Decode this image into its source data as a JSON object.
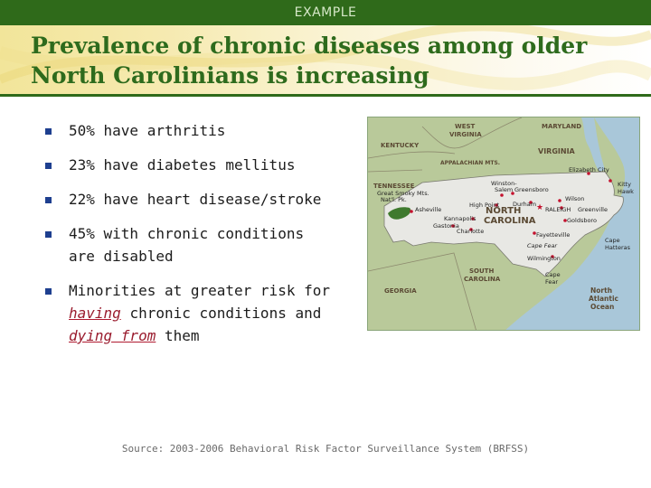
{
  "header": {
    "label": "EXAMPLE"
  },
  "title": {
    "line1": "Prevalence of chronic diseases among older",
    "line2": "North Carolinians is increasing"
  },
  "bullets": [
    {
      "text": "50% have arthritis"
    },
    {
      "text": "23% have diabetes mellitus"
    },
    {
      "text": "22% have heart disease/stroke"
    },
    {
      "line1": "45% with chronic conditions",
      "line2": "are disabled"
    },
    {
      "pre": "Minorities at greater risk for",
      "link1": "having",
      "mid": "chronic conditions and",
      "link2": "dying from",
      "post": "them"
    }
  ],
  "map": {
    "states": {
      "west_virginia_1": "WEST",
      "west_virginia_2": "VIRGINIA",
      "maryland": "MARYLAND",
      "kentucky": "KENTUCKY",
      "virginia": "VIRGINIA",
      "appalachian": "APPALACHIAN MTS.",
      "tennessee": "TENNESSEE",
      "nc_1": "NORTH",
      "nc_2": "CAROLINA",
      "sc_1": "SOUTH",
      "sc_2": "CAROLINA",
      "georgia": "GEORGIA"
    },
    "park": {
      "line1": "Great Smoky Mts.",
      "line2": "Nat'l. Pk."
    },
    "cities": {
      "winston_1": "Winston-",
      "winston_2": "Salem",
      "greensboro": "Greensboro",
      "elizabeth_city": "Elizabeth City",
      "high_point": "High Point",
      "durham": "Durham",
      "wilson": "Wilson",
      "raleigh": "RALEIGH",
      "greenville": "Greenville",
      "asheville": "Asheville",
      "kannapolis": "Kannapolis",
      "goldsboro": "Goldsboro",
      "gastonia": "Gastonia",
      "charlotte": "Charlotte",
      "fayetteville": "Fayetteville",
      "wilmington": "Wilmington",
      "kitty_1": "Kitty",
      "kitty_2": "Hawk"
    },
    "features": {
      "cape_fear_river": "Cape Fear",
      "cape_hatteras_1": "Cape",
      "cape_hatteras_2": "Hatteras",
      "cape_fear_1": "Cape",
      "cape_fear_2": "Fear",
      "ocean_1": "North",
      "ocean_2": "Atlantic",
      "ocean_3": "Ocean"
    },
    "colors": {
      "land": "#b9c99a",
      "nc": "#e8e8e4",
      "ocean": "#a9c7d9",
      "city": "#c4122e"
    }
  },
  "source": "Source: 2003-2006 Behavioral Risk Factor Surveillance System (BRFSS)"
}
